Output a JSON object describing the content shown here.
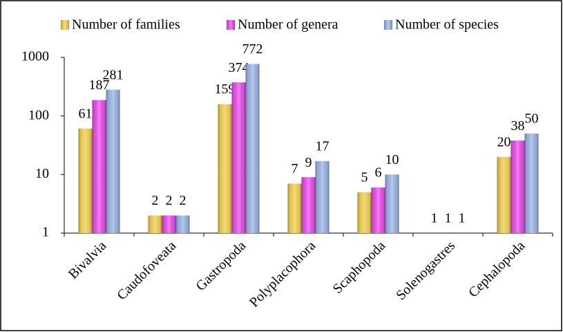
{
  "chart_data": {
    "type": "bar",
    "categories": [
      "Bivalvia",
      "Caudofoveata",
      "Gastropoda",
      "Polyplacophora",
      "Scaphopoda",
      "Solenogastres",
      "Cephalopoda"
    ],
    "series": [
      {
        "name": "Number of families",
        "color": "#e6c440",
        "values": [
          61,
          2,
          159,
          7,
          5,
          1,
          20
        ]
      },
      {
        "name": "Number of genera",
        "color": "#e03ee0",
        "values": [
          187,
          2,
          374,
          9,
          6,
          1,
          38
        ]
      },
      {
        "name": "Number of species",
        "color": "#8ea8dc",
        "values": [
          281,
          2,
          772,
          17,
          10,
          1,
          50
        ]
      }
    ],
    "ylim": [
      1,
      1000
    ],
    "yticks": [
      1,
      10,
      100,
      1000
    ],
    "log_scale": true,
    "legend": "top"
  }
}
